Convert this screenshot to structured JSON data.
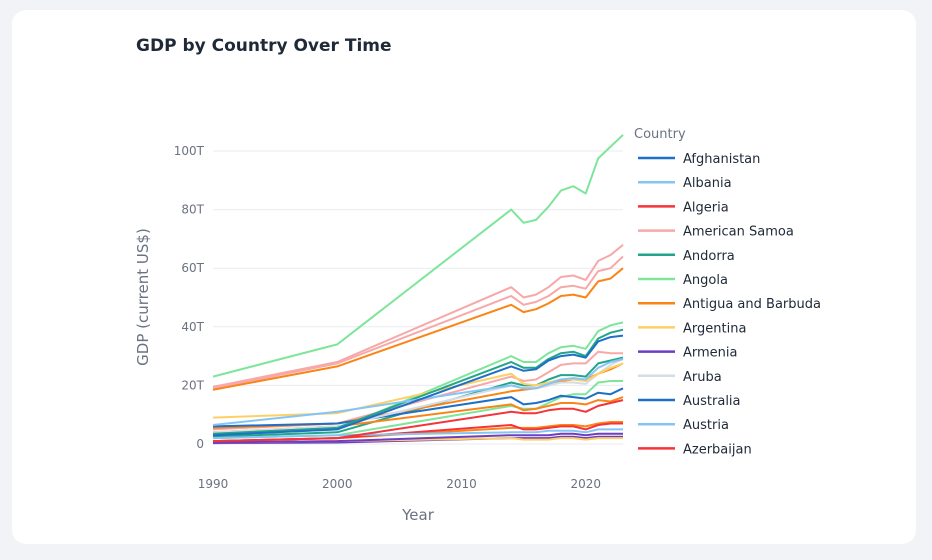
{
  "chart_data": {
    "type": "line",
    "title": "GDP by Country Over Time",
    "xlabel": "Year",
    "ylabel": "GDP (current US$)",
    "xlim": [
      1990,
      2023
    ],
    "ylim": [
      0,
      105
    ],
    "x_ticks": [
      "1990",
      "2000",
      "2010",
      "2020"
    ],
    "y_ticks": [
      {
        "v": 0,
        "label": "0"
      },
      {
        "v": 20,
        "label": "20T"
      },
      {
        "v": 40,
        "label": "40T"
      },
      {
        "v": 60,
        "label": "60T"
      },
      {
        "v": 80,
        "label": "80T"
      },
      {
        "v": 100,
        "label": "100T"
      }
    ],
    "y_unit": "trillion US$",
    "grid": true,
    "legend_title": "Country",
    "legend_position": "right",
    "x": [
      1990,
      2000,
      2014,
      2015,
      2016,
      2017,
      2018,
      2019,
      2020,
      2021,
      2022,
      2023
    ],
    "series": [
      {
        "name": "Afghanistan",
        "color": "#1f6fc8",
        "values": [
          3,
          5,
          26.5,
          25,
          25.5,
          28.5,
          30,
          30.5,
          29.5,
          35,
          36.5,
          37
        ]
      },
      {
        "name": "Albania",
        "color": "#84c5f5",
        "values": [
          6.5,
          11,
          20,
          19,
          19,
          20.5,
          22,
          22.5,
          22,
          26,
          28,
          29
        ]
      },
      {
        "name": "Algeria",
        "color": "#f5333a",
        "values": [
          1,
          2,
          11,
          10.5,
          10.5,
          11.5,
          12,
          12,
          11,
          13,
          14,
          15
        ]
      },
      {
        "name": "American Samoa",
        "color": "#f7a8a8",
        "values": [
          19.5,
          28,
          53.5,
          50,
          51,
          53.5,
          57,
          57.5,
          56,
          62.5,
          64.5,
          68
        ]
      },
      {
        "name": "Andorra",
        "color": "#22a58a",
        "values": [
          3.5,
          5.5,
          28,
          26,
          26,
          29,
          31,
          31.5,
          30,
          36,
          38,
          39
        ]
      },
      {
        "name": "Angola",
        "color": "#7ee59a",
        "values": [
          23,
          34,
          80,
          75.5,
          76.5,
          81,
          86.5,
          88,
          85.5,
          97.5,
          101.5,
          105.5
        ]
      },
      {
        "name": "Antigua and Barbuda",
        "color": "#fb8416",
        "values": [
          18.5,
          26.5,
          47.5,
          45,
          46,
          48,
          50.5,
          51,
          50,
          55.5,
          56.5,
          60
        ]
      },
      {
        "name": "Argentina",
        "color": "#fdd066",
        "values": [
          9,
          10.5,
          24,
          20.5,
          20,
          21,
          22,
          22,
          21.5,
          24,
          26,
          27.5
        ]
      },
      {
        "name": "Armenia",
        "color": "#6d3fc0",
        "values": [
          0.5,
          1,
          3,
          3,
          3,
          3,
          3.5,
          3.5,
          3,
          3.5,
          3.5,
          3.5
        ]
      },
      {
        "name": "Aruba",
        "color": "#d4dce6",
        "values": [
          4,
          6,
          20,
          19,
          19,
          20,
          21,
          21,
          20.5,
          24,
          27,
          29
        ]
      },
      {
        "name": "Australia",
        "color": "#1f6fc8",
        "values": [
          6,
          7,
          16,
          13.5,
          14,
          15,
          16.5,
          16,
          15.5,
          17.5,
          17,
          19
        ]
      },
      {
        "name": "Austria",
        "color": "#84c5f5",
        "values": [
          2,
          3,
          4,
          4,
          4,
          4.5,
          4.5,
          4.5,
          4,
          5,
          5,
          5
        ]
      },
      {
        "name": "Azerbaijan",
        "color": "#f5333a",
        "values": [
          1,
          2,
          6.5,
          5,
          5,
          5.5,
          6,
          6,
          5,
          6.5,
          7,
          7
        ]
      }
    ],
    "extra_series": [
      {
        "color": "#f7a8a8",
        "values": [
          19,
          27.5,
          50.5,
          47.5,
          48.5,
          50.5,
          53.5,
          54,
          53,
          59,
          60,
          64
        ]
      },
      {
        "color": "#7ee59a",
        "values": [
          3,
          5,
          30,
          28,
          28,
          31,
          33,
          33.5,
          32.5,
          38.5,
          40.5,
          41.5
        ]
      },
      {
        "color": "#f7a8a8",
        "values": [
          5,
          7,
          23,
          21.5,
          22,
          24.5,
          27,
          27.5,
          27.5,
          31.5,
          31,
          31
        ]
      },
      {
        "color": "#22a58a",
        "values": [
          2.5,
          4,
          21,
          20,
          20,
          22,
          23.5,
          23.5,
          23,
          27.5,
          28.5,
          29.5
        ]
      },
      {
        "color": "#fb8416",
        "values": [
          5.5,
          7,
          18,
          18.5,
          19,
          20,
          21.5,
          22,
          22,
          24,
          25.5,
          27.5
        ]
      },
      {
        "color": "#7ee59a",
        "values": [
          2,
          3,
          13,
          12,
          12,
          14,
          16,
          17,
          17,
          21,
          21.5,
          21.5
        ]
      },
      {
        "color": "#fb8416",
        "values": [
          4,
          6,
          13.5,
          11.5,
          12,
          13,
          14,
          14,
          13.5,
          15,
          14.5,
          16
        ]
      },
      {
        "color": "#fb8416",
        "values": [
          1,
          2,
          5.5,
          5.5,
          5.5,
          6,
          6.5,
          6.5,
          6,
          7,
          7.5,
          7.5
        ]
      },
      {
        "color": "#6d3fc0",
        "values": [
          0.3,
          0.5,
          2,
          2,
          2,
          2,
          2.5,
          2.5,
          2,
          2.5,
          2.5,
          2.5
        ]
      },
      {
        "color": "#fdd066",
        "values": [
          0.5,
          1,
          2,
          1.5,
          1.5,
          1.5,
          2,
          2,
          1.5,
          2,
          2,
          2
        ]
      }
    ]
  }
}
